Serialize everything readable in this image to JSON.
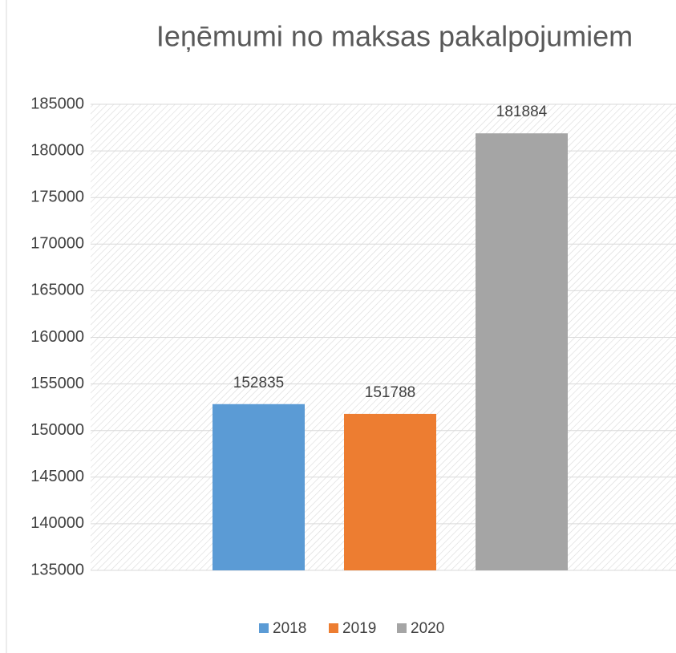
{
  "chart_data": {
    "type": "bar",
    "title": "Ieņēmumi no maksas pakalpojumiem",
    "categories": [
      null
    ],
    "series": [
      {
        "name": "2018",
        "color": "#5b9bd5",
        "values": [
          152835
        ]
      },
      {
        "name": "2019",
        "color": "#ed7d31",
        "values": [
          151788
        ]
      },
      {
        "name": "2020",
        "color": "#a5a5a5",
        "values": [
          181884
        ]
      }
    ],
    "ylim": [
      135000,
      185000
    ],
    "yticks": [
      135000,
      140000,
      145000,
      150000,
      155000,
      160000,
      165000,
      170000,
      175000,
      180000,
      185000
    ],
    "grid": true,
    "legend": "bottom",
    "data_labels": true
  }
}
